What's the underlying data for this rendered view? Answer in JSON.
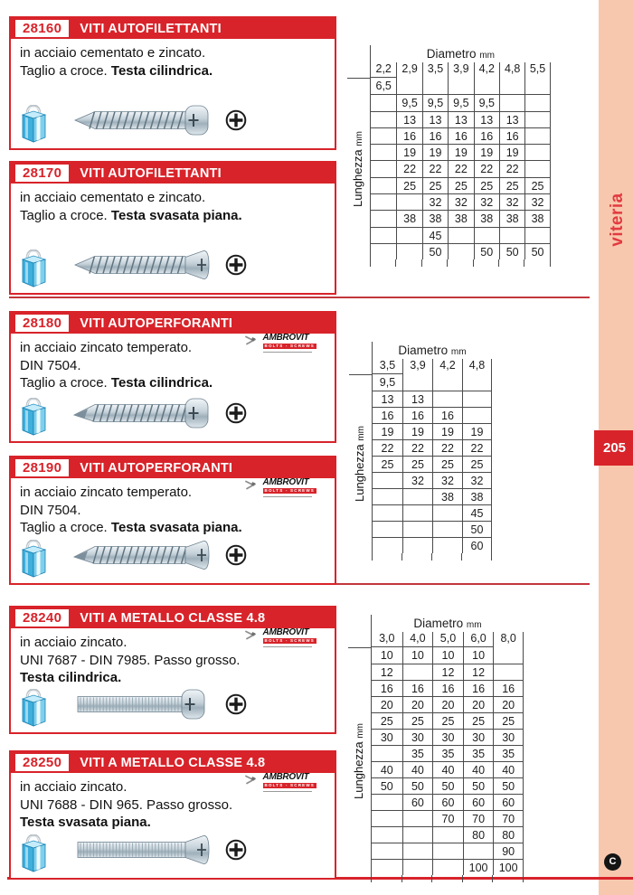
{
  "page": {
    "number": "205",
    "section_label": "viteria",
    "corner_badge": "C"
  },
  "brand": {
    "name": "AMBROVIT",
    "sub": "BOLTS - SCREWS"
  },
  "table_labels": {
    "diameter": "Diametro",
    "length": "Lunghezza",
    "unit": "mm"
  },
  "colors": {
    "red": "#d8232a",
    "salmon": "#f8c8ae",
    "grid_line": "#4a4a4a",
    "brand_red": "#e23a40"
  },
  "products": [
    {
      "code": "28160",
      "title": "VITI AUTOFILETTANTI",
      "ambrovit": false,
      "screw": "tapping-pan",
      "lines": [
        {
          "t": "in acciaio cementato e zincato.",
          "b": ""
        },
        {
          "t": "Taglio a croce. ",
          "b": "Testa cilindrica."
        }
      ]
    },
    {
      "code": "28170",
      "title": "VITI AUTOFILETTANTI",
      "ambrovit": false,
      "screw": "tapping-flat",
      "lines": [
        {
          "t": "in acciaio cementato e zincato.",
          "b": ""
        },
        {
          "t": "Taglio a croce. ",
          "b": "Testa svasata piana."
        }
      ]
    },
    {
      "code": "28180",
      "title": "VITI AUTOPERFORANTI",
      "ambrovit": true,
      "screw": "selfdrill-pan",
      "lines": [
        {
          "t": "in acciaio zincato temperato.",
          "b": ""
        },
        {
          "t": "DIN 7504.",
          "b": ""
        },
        {
          "t": "Taglio a croce. ",
          "b": "Testa cilindrica."
        }
      ]
    },
    {
      "code": "28190",
      "title": "VITI AUTOPERFORANTI",
      "ambrovit": true,
      "screw": "selfdrill-flat",
      "lines": [
        {
          "t": "in acciaio zincato temperato.",
          "b": ""
        },
        {
          "t": "DIN 7504.",
          "b": ""
        },
        {
          "t": "Taglio a croce. ",
          "b": "Testa svasata piana."
        }
      ]
    },
    {
      "code": "28240",
      "title": "VITI A METALLO CLASSE 4.8",
      "ambrovit": true,
      "screw": "machine-pan",
      "lines": [
        {
          "t": "in acciaio zincato.",
          "b": ""
        },
        {
          "t": "UNI 7687 - DIN 7985. Passo grosso.",
          "b": ""
        },
        {
          "t": "",
          "b": "Testa cilindrica."
        }
      ]
    },
    {
      "code": "28250",
      "title": "VITI A METALLO CLASSE 4.8",
      "ambrovit": true,
      "screw": "machine-flat",
      "lines": [
        {
          "t": "in acciaio zincato.",
          "b": ""
        },
        {
          "t": "UNI 7688 - DIN 965. Passo grosso.",
          "b": ""
        },
        {
          "t": "",
          "b": "Testa svasata piana."
        }
      ]
    }
  ],
  "tables": [
    {
      "columns": [
        "2,2",
        "2,9",
        "3,5",
        "3,9",
        "4,2",
        "4,8",
        "5,5"
      ],
      "rows": [
        [
          "6,5",
          "",
          "",
          "",
          "",
          "",
          ""
        ],
        [
          "",
          "9,5",
          "9,5",
          "9,5",
          "9,5",
          "",
          ""
        ],
        [
          "",
          "13",
          "13",
          "13",
          "13",
          "13",
          ""
        ],
        [
          "",
          "16",
          "16",
          "16",
          "16",
          "16",
          ""
        ],
        [
          "",
          "19",
          "19",
          "19",
          "19",
          "19",
          ""
        ],
        [
          "",
          "22",
          "22",
          "22",
          "22",
          "22",
          ""
        ],
        [
          "",
          "25",
          "25",
          "25",
          "25",
          "25",
          "25"
        ],
        [
          "",
          "",
          "32",
          "32",
          "32",
          "32",
          "32"
        ],
        [
          "",
          "38",
          "38",
          "38",
          "38",
          "38",
          "38"
        ],
        [
          "",
          "",
          "45",
          "",
          "",
          "",
          ""
        ],
        [
          "",
          "",
          "50",
          "",
          "50",
          "50",
          "50"
        ]
      ]
    },
    {
      "columns": [
        "3,5",
        "3,9",
        "4,2",
        "4,8"
      ],
      "rows": [
        [
          "9,5",
          "",
          "",
          ""
        ],
        [
          "13",
          "13",
          "",
          ""
        ],
        [
          "16",
          "16",
          "16",
          ""
        ],
        [
          "19",
          "19",
          "19",
          "19"
        ],
        [
          "22",
          "22",
          "22",
          "22"
        ],
        [
          "25",
          "25",
          "25",
          "25"
        ],
        [
          "",
          "32",
          "32",
          "32"
        ],
        [
          "",
          "",
          "38",
          "38"
        ],
        [
          "",
          "",
          "",
          "45"
        ],
        [
          "",
          "",
          "",
          "50"
        ],
        [
          "",
          "",
          "",
          "60"
        ]
      ]
    },
    {
      "columns": [
        "3,0",
        "4,0",
        "5,0",
        "6,0",
        "8,0"
      ],
      "rows": [
        [
          "10",
          "10",
          "10",
          "10",
          ""
        ],
        [
          "12",
          "",
          "12",
          "12",
          ""
        ],
        [
          "16",
          "16",
          "16",
          "16",
          "16"
        ],
        [
          "20",
          "20",
          "20",
          "20",
          "20"
        ],
        [
          "25",
          "25",
          "25",
          "25",
          "25"
        ],
        [
          "30",
          "30",
          "30",
          "30",
          "30"
        ],
        [
          "",
          "35",
          "35",
          "35",
          "35"
        ],
        [
          "40",
          "40",
          "40",
          "40",
          "40"
        ],
        [
          "50",
          "50",
          "50",
          "50",
          "50"
        ],
        [
          "",
          "60",
          "60",
          "60",
          "60"
        ],
        [
          "",
          "",
          "70",
          "70",
          "70"
        ],
        [
          "",
          "",
          "",
          "80",
          "80"
        ],
        [
          "",
          "",
          "",
          "",
          "90"
        ],
        [
          "",
          "",
          "",
          "100",
          "100"
        ]
      ]
    }
  ]
}
